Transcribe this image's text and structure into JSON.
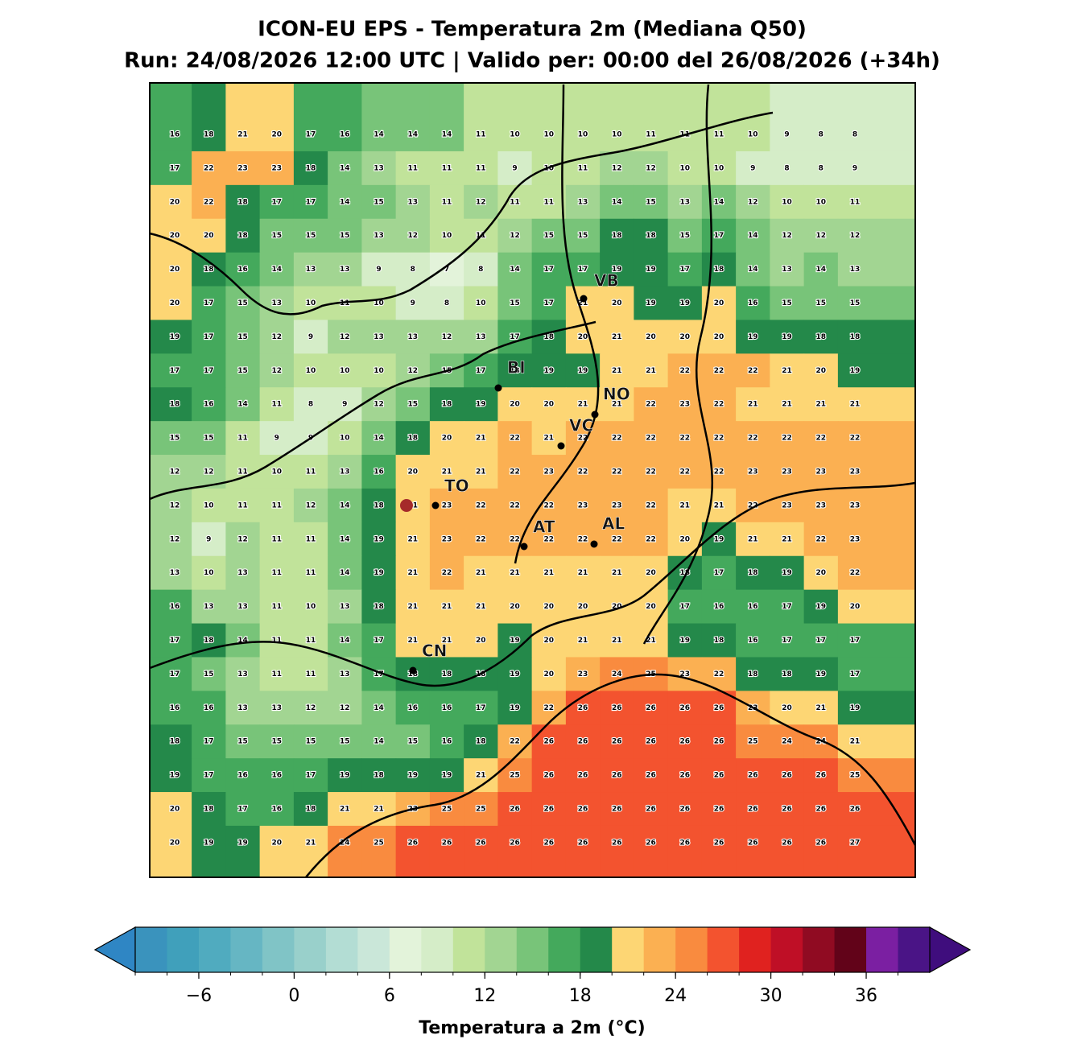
{
  "title": "ICON-EU EPS - Temperatura 2m (Mediana Q50)",
  "subtitle": "Run: 24/08/2026 12:00 UTC | Valido per: 00:00 del 26/08/2026 (+34h)",
  "grid": {
    "rows": [
      [
        16,
        18,
        21,
        20,
        17,
        16,
        14,
        14,
        14,
        11,
        10,
        10,
        10,
        10,
        11,
        11,
        11,
        10,
        9,
        8,
        8
      ],
      [
        17,
        22,
        23,
        23,
        18,
        14,
        13,
        11,
        11,
        11,
        9,
        10,
        11,
        12,
        12,
        10,
        10,
        9,
        8,
        8,
        9
      ],
      [
        20,
        22,
        18,
        17,
        17,
        14,
        15,
        13,
        11,
        12,
        11,
        11,
        13,
        14,
        15,
        13,
        14,
        12,
        10,
        10,
        11
      ],
      [
        20,
        20,
        18,
        15,
        15,
        15,
        13,
        12,
        10,
        11,
        12,
        15,
        15,
        18,
        18,
        15,
        17,
        14,
        12,
        12,
        12
      ],
      [
        20,
        18,
        16,
        14,
        13,
        13,
        9,
        8,
        7,
        8,
        14,
        17,
        17,
        19,
        19,
        17,
        18,
        14,
        13,
        14,
        13
      ],
      [
        20,
        17,
        15,
        13,
        10,
        11,
        10,
        9,
        8,
        10,
        15,
        17,
        21,
        20,
        19,
        19,
        20,
        16,
        15,
        15,
        15
      ],
      [
        19,
        17,
        15,
        12,
        9,
        12,
        13,
        13,
        12,
        13,
        17,
        18,
        20,
        21,
        20,
        20,
        20,
        19,
        19,
        18,
        18
      ],
      [
        17,
        17,
        15,
        12,
        10,
        10,
        10,
        12,
        15,
        17,
        18,
        19,
        19,
        21,
        21,
        22,
        22,
        22,
        21,
        20,
        19
      ],
      [
        18,
        16,
        14,
        11,
        8,
        9,
        12,
        15,
        18,
        19,
        20,
        20,
        21,
        21,
        22,
        23,
        22,
        21,
        21,
        21,
        21
      ],
      [
        15,
        15,
        11,
        9,
        9,
        10,
        14,
        18,
        20,
        21,
        22,
        21,
        22,
        22,
        22,
        22,
        22,
        22,
        22,
        22,
        22
      ],
      [
        12,
        12,
        11,
        10,
        11,
        13,
        16,
        20,
        21,
        21,
        22,
        23,
        22,
        22,
        22,
        22,
        22,
        23,
        23,
        23,
        23
      ],
      [
        12,
        10,
        11,
        11,
        12,
        14,
        18,
        21,
        23,
        22,
        22,
        22,
        23,
        23,
        22,
        21,
        21,
        22,
        23,
        23,
        23
      ],
      [
        12,
        9,
        12,
        11,
        11,
        14,
        19,
        21,
        23,
        22,
        22,
        22,
        22,
        22,
        22,
        20,
        19,
        21,
        21,
        22,
        23
      ],
      [
        13,
        10,
        13,
        11,
        11,
        14,
        19,
        21,
        22,
        21,
        21,
        21,
        21,
        21,
        20,
        18,
        17,
        18,
        19,
        20,
        22
      ],
      [
        16,
        13,
        13,
        11,
        10,
        13,
        18,
        21,
        21,
        21,
        20,
        20,
        20,
        20,
        20,
        17,
        16,
        16,
        17,
        19,
        20
      ],
      [
        17,
        18,
        14,
        11,
        11,
        14,
        17,
        21,
        21,
        20,
        19,
        20,
        21,
        21,
        21,
        19,
        18,
        16,
        17,
        17,
        17
      ],
      [
        17,
        15,
        13,
        11,
        11,
        13,
        17,
        18,
        18,
        18,
        19,
        20,
        23,
        24,
        25,
        23,
        22,
        18,
        18,
        19,
        17
      ],
      [
        16,
        16,
        13,
        13,
        12,
        12,
        14,
        16,
        16,
        17,
        19,
        22,
        26,
        26,
        26,
        26,
        26,
        23,
        20,
        21,
        19
      ],
      [
        18,
        17,
        15,
        15,
        15,
        15,
        14,
        15,
        16,
        18,
        22,
        26,
        26,
        26,
        26,
        26,
        26,
        25,
        24,
        24,
        21
      ],
      [
        19,
        17,
        16,
        16,
        17,
        19,
        18,
        19,
        19,
        21,
        25,
        26,
        26,
        26,
        26,
        26,
        26,
        26,
        26,
        26,
        25
      ],
      [
        20,
        18,
        17,
        16,
        18,
        21,
        21,
        23,
        25,
        25,
        26,
        26,
        26,
        26,
        26,
        26,
        26,
        26,
        26,
        26,
        26
      ],
      [
        20,
        19,
        19,
        20,
        21,
        24,
        25,
        26,
        26,
        26,
        26,
        26,
        26,
        26,
        26,
        26,
        26,
        26,
        26,
        26,
        27
      ]
    ]
  },
  "cities": [
    "VB",
    "BI",
    "NO",
    "VC",
    "TO",
    "AT",
    "AL",
    "CN"
  ],
  "colorbar": {
    "label": "Temperatura a 2m (°C)",
    "range": [
      -10,
      40
    ],
    "ticks": [
      {
        "value": -6,
        "label": "−6"
      },
      0,
      6,
      12,
      18,
      24,
      30,
      36
    ],
    "colors": [
      "#3a93bd",
      "#40a0bb",
      "#50abbf",
      "#66b6c3",
      "#80c4c6",
      "#99d0cb",
      "#b3ddd4",
      "#cae7d9",
      "#e3f3da",
      "#d5edc8",
      "#c1e39a",
      "#a2d592",
      "#78c479",
      "#44a95c",
      "#24894a",
      "#fdd674",
      "#fbb052",
      "#f98b3f",
      "#f3532f",
      "#e0221f",
      "#bf0f26",
      "#900b22",
      "#620319",
      "#7b1fa2",
      "#4a1486"
    ],
    "under": "#2f86c4",
    "over": "#3f0d7d"
  }
}
